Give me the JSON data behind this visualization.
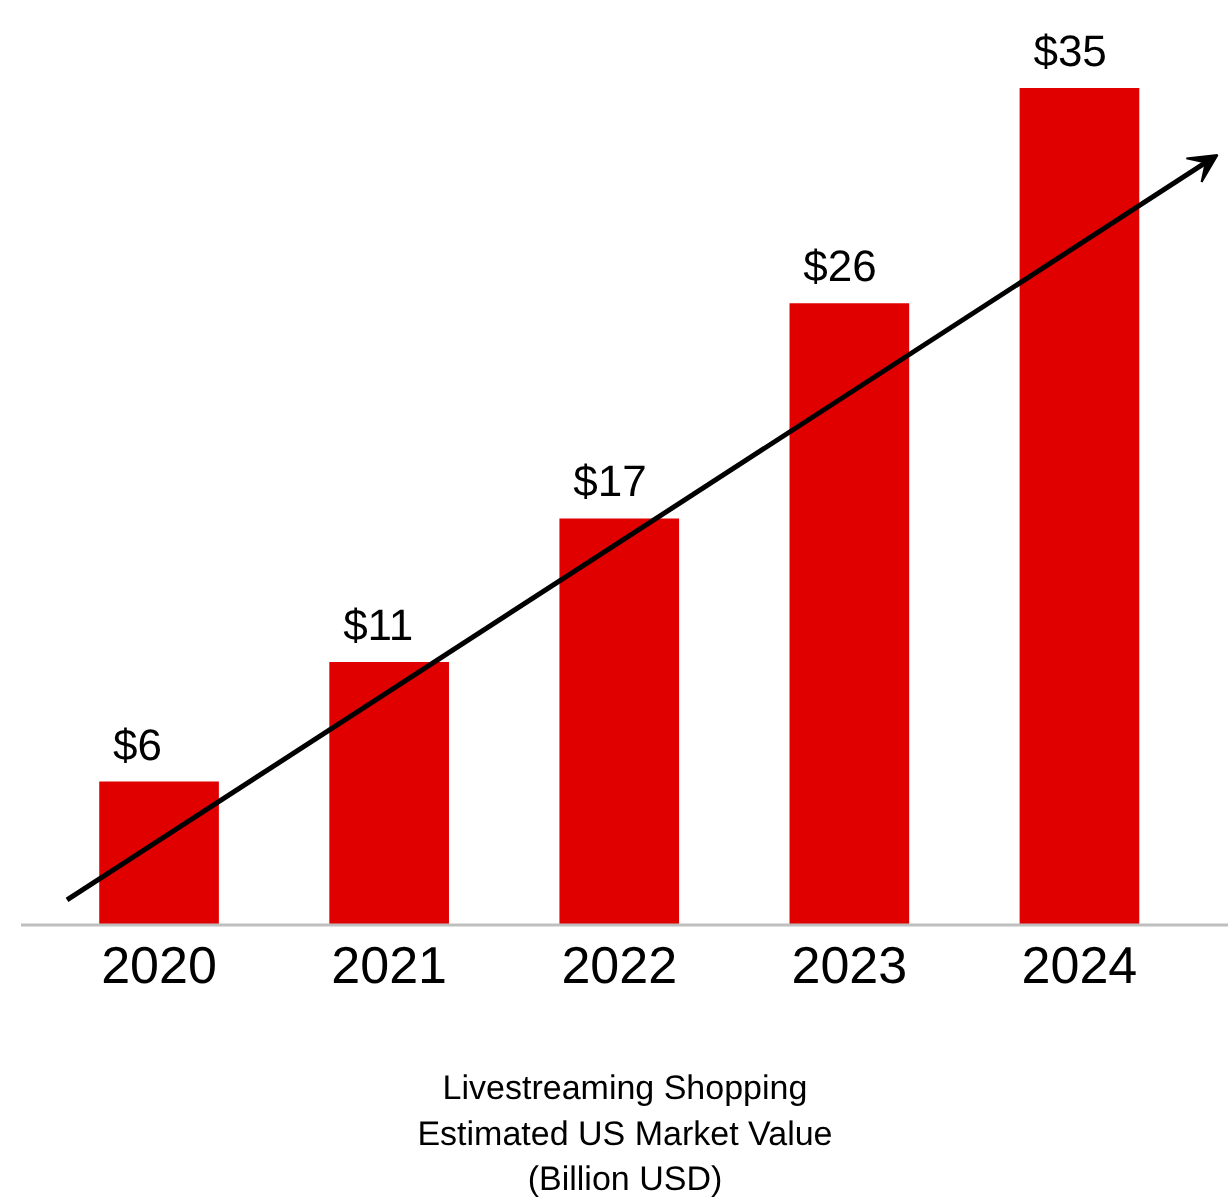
{
  "chart_data": {
    "type": "bar",
    "xlabel": "Livestreaming Shopping\nEstimated US Market Value\n(Billion USD)",
    "categories": [
      "2020",
      "2021",
      "2022",
      "2023",
      "2024"
    ],
    "values": [
      6,
      11,
      17,
      26,
      35
    ],
    "value_labels": [
      "$6",
      "$11",
      "$17",
      "$26",
      "$35"
    ],
    "color": "#e00000",
    "grid": false
  }
}
